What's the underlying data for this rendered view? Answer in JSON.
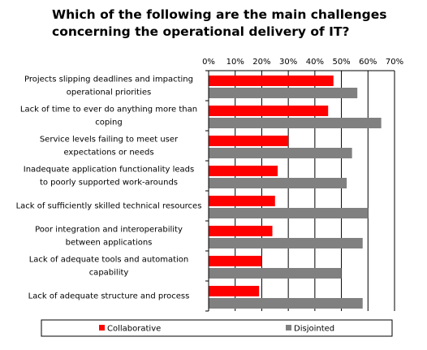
{
  "chart_data": {
    "type": "bar",
    "orientation": "horizontal",
    "title": "Which of the following are the main challenges\nconcerning the operational delivery of IT?",
    "categories": [
      [
        "Projects slipping deadlines and impacting",
        "operational priorities"
      ],
      [
        "Lack of time to ever do anything more than",
        "coping"
      ],
      [
        "Service levels failing to meet user",
        "expectations or needs"
      ],
      [
        "Inadequate application functionality leads",
        "to poorly supported work-arounds"
      ],
      [
        "Lack of sufficiently skilled technical resources"
      ],
      [
        "Poor integration and interoperability",
        "between applications"
      ],
      [
        "Lack of adequate tools and automation",
        "capability"
      ],
      [
        "Lack of adequate structure and process"
      ]
    ],
    "series": [
      {
        "name": "Collaborative",
        "color": "#ff0000",
        "values": [
          47,
          45,
          30,
          26,
          25,
          24,
          20,
          19
        ]
      },
      {
        "name": "Disjointed",
        "color": "#808080",
        "values": [
          56,
          65,
          54,
          52,
          60,
          58,
          50,
          58
        ]
      }
    ],
    "xlim": [
      0,
      70
    ],
    "xticks": [
      "0%",
      "10%",
      "20%",
      "30%",
      "40%",
      "50%",
      "60%",
      "70%"
    ],
    "grid": true,
    "legend_position": "bottom"
  }
}
